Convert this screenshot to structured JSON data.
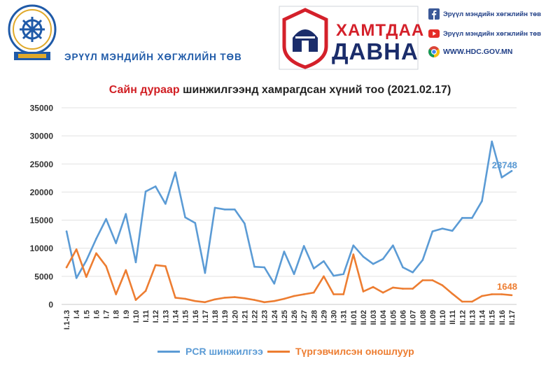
{
  "header": {
    "org_name": "ЭРҮҮЛ МЭНДИЙН ХӨГЖЛИЙН ТӨВ",
    "logo_line1": "ХАМТДАА",
    "logo_line2": "ДАВНА",
    "social": [
      {
        "icon": "facebook-icon",
        "text": "Эрүүл мэндийн хөгжлийн төв"
      },
      {
        "icon": "youtube-icon",
        "text": "Эрүүл мэндийн хөгжлийн төв"
      },
      {
        "icon": "chrome-icon",
        "text": "WWW.HDC.GOV.MN"
      }
    ]
  },
  "chart_data": {
    "type": "line",
    "title_highlight": "Сайн дураар",
    "title_rest": " шинжилгээнд хамрагдсан хүний тоо (2021.02.17)",
    "ylim": [
      0,
      35000
    ],
    "yticks": [
      "0",
      "5000",
      "10000",
      "15000",
      "20000",
      "25000",
      "30000",
      "35000"
    ],
    "grid": true,
    "legend_position": "bottom",
    "categories": [
      "I.1-I.3",
      "I.4",
      "I.5",
      "I.6",
      "I.7",
      "I.8",
      "I.9",
      "I.10",
      "I.11",
      "I.12",
      "I.13",
      "I.14",
      "I.15",
      "I.16",
      "I.17",
      "I.18",
      "I.19",
      "I.20",
      "I.21",
      "I.22",
      "I.23",
      "I.24",
      "I.25",
      "I.26",
      "I.27",
      "I.28",
      "I.29",
      "I.30",
      "I.31",
      "II.01",
      "II.02",
      "II.03",
      "II.04",
      "II.05",
      "II.06",
      "II.07",
      "II.08",
      "II.09",
      "II.10",
      "II.11",
      "II.12",
      "II.13",
      "II.14",
      "II.15",
      "II.16",
      "II.17"
    ],
    "series": [
      {
        "name": "PCR шинжилгээ",
        "color": "#5b9bd5",
        "end_label": "23748",
        "values": [
          13000,
          4700,
          7800,
          11700,
          15200,
          10900,
          16100,
          7500,
          20100,
          21000,
          17900,
          23500,
          15500,
          14500,
          5600,
          17200,
          16900,
          16900,
          14400,
          6700,
          6600,
          3700,
          9400,
          5400,
          10400,
          6400,
          7700,
          5100,
          5400,
          10500,
          8500,
          7200,
          8100,
          10500,
          6600,
          5700,
          7900,
          13000,
          13500,
          13100,
          15400,
          15400,
          18400,
          29000,
          22600,
          23748
        ]
      },
      {
        "name": "Түргэвчилсэн оношлуур",
        "color": "#ed7d31",
        "end_label": "1648",
        "values": [
          6600,
          9800,
          4900,
          9100,
          6800,
          1800,
          6100,
          800,
          2400,
          7000,
          6800,
          1200,
          1000,
          600,
          400,
          900,
          1200,
          1300,
          1100,
          800,
          400,
          600,
          1000,
          1500,
          1800,
          2100,
          5000,
          1800,
          1800,
          8900,
          2300,
          3100,
          2100,
          3000,
          2800,
          2800,
          4300,
          4300,
          3400,
          1900,
          500,
          500,
          1500,
          1800,
          1800,
          1648
        ]
      }
    ]
  }
}
